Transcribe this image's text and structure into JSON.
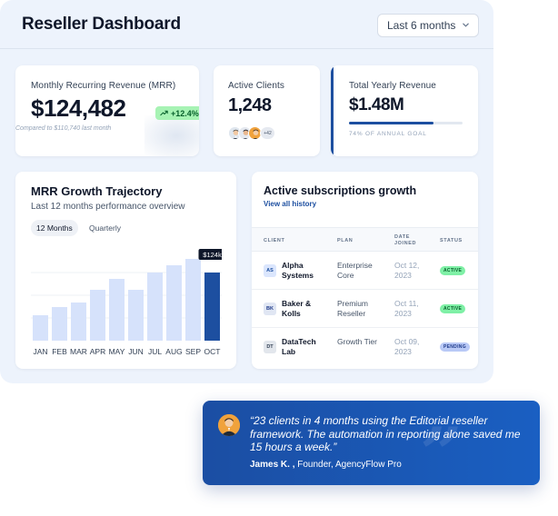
{
  "header": {
    "title": "Reseller Dashboard",
    "range_label": "Last 6 months"
  },
  "kpis": {
    "mrr": {
      "label": "Monthly Recurring Revenue (MRR)",
      "value": "$124,482",
      "trend": "+12.4%",
      "comparison": "Compared to $110,740 last month"
    },
    "clients": {
      "label": "Active Clients",
      "value": "1,248",
      "more": "+42"
    },
    "yearly": {
      "label": "Total Yearly Revenue",
      "value": "$1.48M",
      "goal_pct": 74,
      "goal_text": "74% of annual goal"
    }
  },
  "mrr_chart": {
    "title": "MRR Growth Trajectory",
    "subtitle": "Last 12 months performance overview",
    "tabs": [
      "12 Months",
      "Quarterly"
    ],
    "active_tab": 0
  },
  "chart_data": {
    "type": "bar",
    "categories": [
      "JAN",
      "FEB",
      "MAR",
      "APR",
      "MAY",
      "JUN",
      "JUL",
      "AUG",
      "SEP",
      "OCT"
    ],
    "values": [
      28,
      37,
      42,
      56,
      68,
      56,
      75,
      83,
      90,
      75
    ],
    "highlight_index": 9,
    "highlight_label": "$124k",
    "colors": {
      "bar": "#d6e2fb",
      "highlight": "#1d4fa0"
    },
    "grid": true
  },
  "subscriptions": {
    "title": "Active subscriptions growth",
    "link": "View all history",
    "columns": [
      "Client",
      "Plan",
      "Date Joined",
      "Status"
    ],
    "rows": [
      {
        "initials": "AS",
        "client": "Alpha Systems",
        "plan": "Enterprise Core",
        "date": "Oct 12, 2023",
        "status": "active",
        "badge_bg": "#dbe6fd",
        "badge_fg": "#1d4fa0"
      },
      {
        "initials": "BK",
        "client": "Baker & Kolls",
        "plan": "Premium Reseller",
        "date": "Oct 11, 2023",
        "status": "active",
        "badge_bg": "#e0e6f3",
        "badge_fg": "#1e3a8a"
      },
      {
        "initials": "DT",
        "client": "DataTech Lab",
        "plan": "Growth Tier",
        "date": "Oct 09, 2023",
        "status": "pending",
        "badge_bg": "#e2e6ec",
        "badge_fg": "#334155"
      }
    ]
  },
  "testimonial": {
    "quote": "“23 clients in 4 months using the Editorial reseller framework. The automation in reporting alone saved me 15 hours a week.”",
    "author": "James K. ,",
    "role": "Founder, AgencyFlow Pro",
    "mark": "”"
  },
  "colors": {
    "brand": "#1d4fa0",
    "panel_bg": "#edf3fc",
    "active_green": "#7ff0a6",
    "pending_blue": "#b9c9f6"
  }
}
